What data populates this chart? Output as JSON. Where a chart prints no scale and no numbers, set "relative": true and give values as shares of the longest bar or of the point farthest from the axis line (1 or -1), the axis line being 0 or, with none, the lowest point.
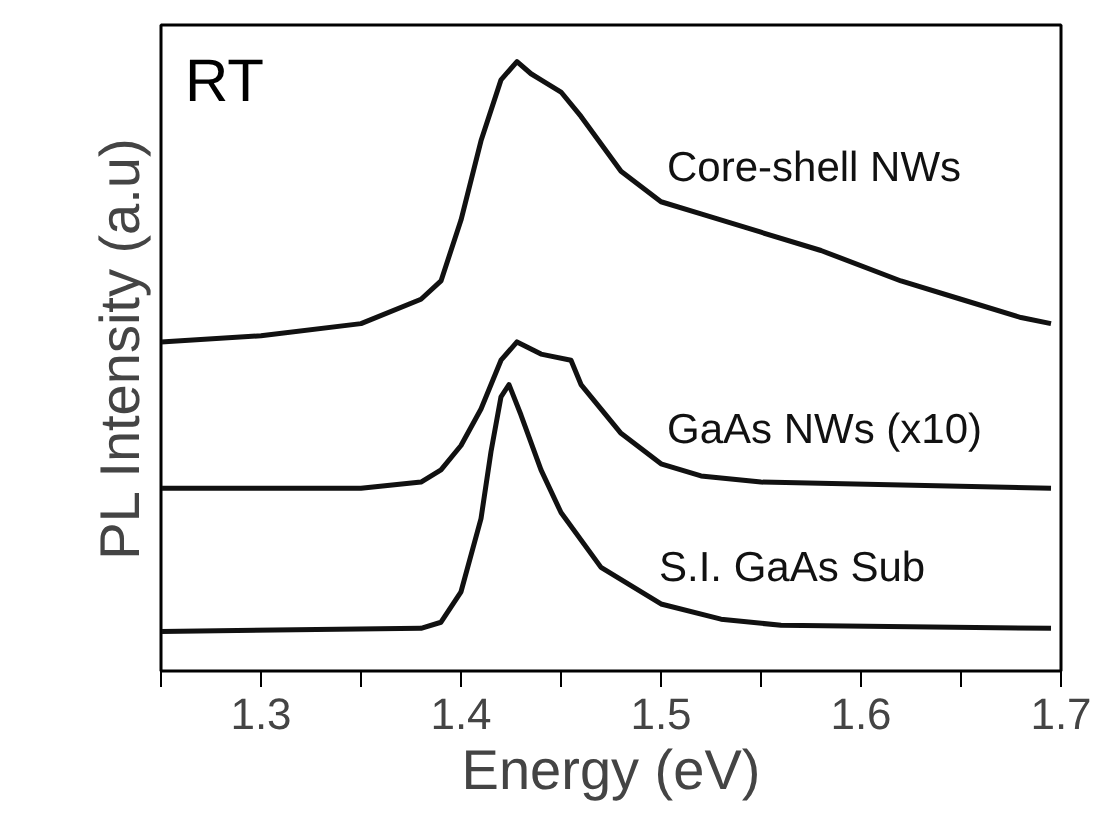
{
  "chart_data": {
    "type": "line",
    "xlabel": "Energy (eV)",
    "ylabel": "PL Intensity (a.u)",
    "relative": true,
    "tick_labels": "x",
    "grid": false,
    "legend": false,
    "line_style": "solid",
    "marker": "none",
    "annotations": [
      "RT"
    ],
    "xlim": [
      1.25,
      1.7
    ],
    "xticks": [
      {
        "value": 1.25,
        "label": null
      },
      1.3,
      {
        "value": 1.35,
        "label": null
      },
      1.4,
      {
        "value": 1.45,
        "label": null
      },
      1.5,
      {
        "value": 1.55,
        "label": null
      },
      1.6,
      {
        "value": 1.65,
        "label": null
      },
      1.7
    ],
    "series": [
      {
        "name": "Core-shell NWs",
        "color": "#111111",
        "x": [
          1.25,
          1.3,
          1.35,
          1.38,
          1.39,
          1.4,
          1.41,
          1.42,
          1.428,
          1.435,
          1.44,
          1.45,
          1.46,
          1.48,
          1.5,
          1.52,
          1.55,
          1.58,
          1.62,
          1.65,
          1.68,
          1.695
        ],
        "values": [
          0.54,
          0.55,
          0.57,
          0.61,
          0.64,
          0.74,
          0.87,
          0.97,
          1.0,
          0.98,
          0.97,
          0.95,
          0.91,
          0.82,
          0.77,
          0.75,
          0.72,
          0.69,
          0.64,
          0.61,
          0.58,
          0.57
        ]
      },
      {
        "name": "GaAs NWs (x10)",
        "color": "#111111",
        "x": [
          1.25,
          1.35,
          1.38,
          1.39,
          1.4,
          1.41,
          1.42,
          1.428,
          1.44,
          1.455,
          1.46,
          1.48,
          1.5,
          1.52,
          1.55,
          1.695
        ],
        "values": [
          0.3,
          0.3,
          0.31,
          0.33,
          0.37,
          0.43,
          0.51,
          0.54,
          0.52,
          0.51,
          0.47,
          0.39,
          0.34,
          0.32,
          0.31,
          0.3
        ]
      },
      {
        "name": "S.I. GaAs Sub",
        "color": "#111111",
        "x": [
          1.25,
          1.38,
          1.39,
          1.4,
          1.41,
          1.415,
          1.42,
          1.424,
          1.43,
          1.44,
          1.45,
          1.47,
          1.5,
          1.53,
          1.56,
          1.695
        ],
        "values": [
          0.065,
          0.07,
          0.08,
          0.13,
          0.25,
          0.36,
          0.45,
          0.47,
          0.42,
          0.33,
          0.26,
          0.17,
          0.11,
          0.085,
          0.075,
          0.07
        ]
      }
    ]
  }
}
